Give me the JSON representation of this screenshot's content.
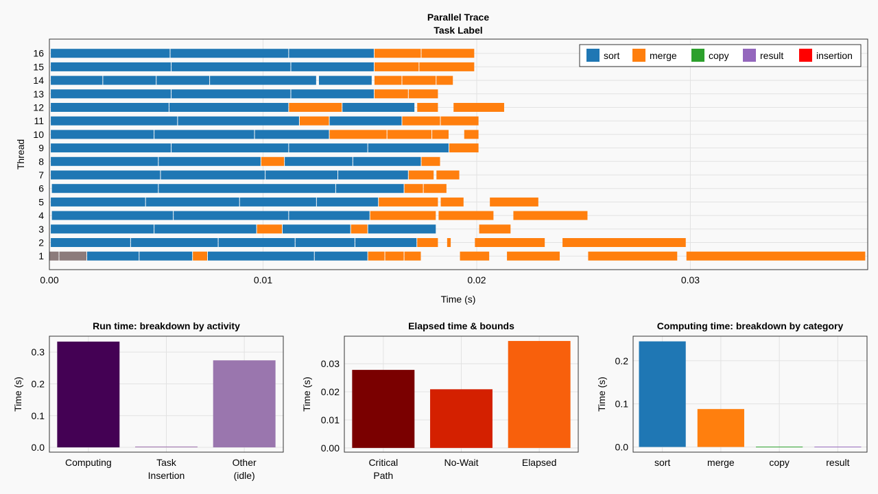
{
  "chart_data": [
    {
      "type": "bar",
      "orientation": "horizontal-gantt",
      "title": "Parallel Trace",
      "subtitle": "Task Label",
      "xlabel": "Time (s)",
      "ylabel": "Thread",
      "xlim": [
        0.0,
        0.0383
      ],
      "xticks": [
        "0.00",
        "0.01",
        "0.02",
        "0.03"
      ],
      "xtick_values": [
        0.0,
        0.01,
        0.02,
        0.03
      ],
      "legend_position": "top-right",
      "legend": [
        {
          "name": "sort",
          "color": "#1f77b4"
        },
        {
          "name": "merge",
          "color": "#ff7f0e"
        },
        {
          "name": "copy",
          "color": "#2ca02c"
        },
        {
          "name": "result",
          "color": "#9467bd"
        },
        {
          "name": "insertion",
          "color": "#ff0000"
        }
      ],
      "threads": [
        {
          "thread": "16",
          "tasks": [
            {
              "s": 5e-05,
              "e": 0.00565,
              "c": "sort"
            },
            {
              "s": 0.00565,
              "e": 0.0112,
              "c": "sort"
            },
            {
              "s": 0.0112,
              "e": 0.0152,
              "c": "sort"
            },
            {
              "s": 0.0152,
              "e": 0.0174,
              "c": "merge"
            },
            {
              "s": 0.0174,
              "e": 0.0199,
              "c": "merge"
            }
          ]
        },
        {
          "thread": "15",
          "tasks": [
            {
              "s": 5e-05,
              "e": 0.0057,
              "c": "sort"
            },
            {
              "s": 0.0057,
              "e": 0.0113,
              "c": "sort"
            },
            {
              "s": 0.0113,
              "e": 0.0152,
              "c": "sort"
            },
            {
              "s": 0.0152,
              "e": 0.0173,
              "c": "merge"
            },
            {
              "s": 0.0173,
              "e": 0.0199,
              "c": "merge"
            }
          ]
        },
        {
          "thread": "14",
          "tasks": [
            {
              "s": 5e-05,
              "e": 0.0025,
              "c": "sort"
            },
            {
              "s": 0.0025,
              "e": 0.005,
              "c": "sort"
            },
            {
              "s": 0.005,
              "e": 0.0075,
              "c": "sort"
            },
            {
              "s": 0.0075,
              "e": 0.0125,
              "c": "sort"
            },
            {
              "s": 0.0126,
              "e": 0.0151,
              "c": "sort"
            },
            {
              "s": 0.0152,
              "e": 0.0165,
              "c": "merge"
            },
            {
              "s": 0.0165,
              "e": 0.0181,
              "c": "merge"
            },
            {
              "s": 0.0181,
              "e": 0.0189,
              "c": "merge"
            }
          ]
        },
        {
          "thread": "13",
          "tasks": [
            {
              "s": 5e-05,
              "e": 0.0057,
              "c": "sort"
            },
            {
              "s": 0.0057,
              "e": 0.0113,
              "c": "sort"
            },
            {
              "s": 0.0113,
              "e": 0.0152,
              "c": "sort"
            },
            {
              "s": 0.0152,
              "e": 0.0168,
              "c": "merge"
            },
            {
              "s": 0.0168,
              "e": 0.0182,
              "c": "merge"
            }
          ]
        },
        {
          "thread": "12",
          "tasks": [
            {
              "s": 5e-05,
              "e": 0.0056,
              "c": "sort"
            },
            {
              "s": 0.0056,
              "e": 0.0112,
              "c": "sort"
            },
            {
              "s": 0.0112,
              "e": 0.0137,
              "c": "merge"
            },
            {
              "s": 0.0137,
              "e": 0.0171,
              "c": "sort"
            },
            {
              "s": 0.0172,
              "e": 0.0182,
              "c": "merge"
            },
            {
              "s": 0.0189,
              "e": 0.0213,
              "c": "merge"
            }
          ]
        },
        {
          "thread": "11",
          "tasks": [
            {
              "s": 5e-05,
              "e": 0.006,
              "c": "sort"
            },
            {
              "s": 0.006,
              "e": 0.0117,
              "c": "sort"
            },
            {
              "s": 0.0117,
              "e": 0.0131,
              "c": "merge"
            },
            {
              "s": 0.0131,
              "e": 0.0165,
              "c": "sort"
            },
            {
              "s": 0.0165,
              "e": 0.0183,
              "c": "merge"
            },
            {
              "s": 0.0183,
              "e": 0.0201,
              "c": "merge"
            }
          ]
        },
        {
          "thread": "10",
          "tasks": [
            {
              "s": 5e-05,
              "e": 0.0049,
              "c": "sort"
            },
            {
              "s": 0.0049,
              "e": 0.0096,
              "c": "sort"
            },
            {
              "s": 0.0096,
              "e": 0.0131,
              "c": "sort"
            },
            {
              "s": 0.0131,
              "e": 0.0158,
              "c": "merge"
            },
            {
              "s": 0.0158,
              "e": 0.0179,
              "c": "merge"
            },
            {
              "s": 0.0179,
              "e": 0.0187,
              "c": "merge"
            },
            {
              "s": 0.0194,
              "e": 0.0201,
              "c": "merge"
            }
          ]
        },
        {
          "thread": "9",
          "tasks": [
            {
              "s": 5e-05,
              "e": 0.0057,
              "c": "sort"
            },
            {
              "s": 0.0057,
              "e": 0.0112,
              "c": "sort"
            },
            {
              "s": 0.0112,
              "e": 0.0149,
              "c": "sort"
            },
            {
              "s": 0.0149,
              "e": 0.0187,
              "c": "sort"
            },
            {
              "s": 0.0187,
              "e": 0.0201,
              "c": "merge"
            }
          ]
        },
        {
          "thread": "8",
          "tasks": [
            {
              "s": 5e-05,
              "e": 0.0051,
              "c": "sort"
            },
            {
              "s": 0.0051,
              "e": 0.0099,
              "c": "sort"
            },
            {
              "s": 0.0099,
              "e": 0.011,
              "c": "merge"
            },
            {
              "s": 0.011,
              "e": 0.0142,
              "c": "sort"
            },
            {
              "s": 0.0142,
              "e": 0.0174,
              "c": "sort"
            },
            {
              "s": 0.0174,
              "e": 0.0183,
              "c": "merge"
            }
          ]
        },
        {
          "thread": "7",
          "tasks": [
            {
              "s": 5e-05,
              "e": 0.0052,
              "c": "sort"
            },
            {
              "s": 0.0052,
              "e": 0.0101,
              "c": "sort"
            },
            {
              "s": 0.0101,
              "e": 0.0135,
              "c": "sort"
            },
            {
              "s": 0.0135,
              "e": 0.0168,
              "c": "sort"
            },
            {
              "s": 0.0168,
              "e": 0.018,
              "c": "merge"
            },
            {
              "s": 0.0181,
              "e": 0.0192,
              "c": "merge"
            }
          ]
        },
        {
          "thread": "6",
          "tasks": [
            {
              "s": 0.0001,
              "e": 0.0051,
              "c": "sort"
            },
            {
              "s": 0.0051,
              "e": 0.0134,
              "c": "sort"
            },
            {
              "s": 0.0134,
              "e": 0.0166,
              "c": "sort"
            },
            {
              "s": 0.0166,
              "e": 0.0175,
              "c": "merge"
            },
            {
              "s": 0.0175,
              "e": 0.0186,
              "c": "merge"
            }
          ]
        },
        {
          "thread": "5",
          "tasks": [
            {
              "s": 5e-05,
              "e": 0.0045,
              "c": "sort"
            },
            {
              "s": 0.0045,
              "e": 0.0089,
              "c": "sort"
            },
            {
              "s": 0.0089,
              "e": 0.0125,
              "c": "sort"
            },
            {
              "s": 0.0125,
              "e": 0.0154,
              "c": "sort"
            },
            {
              "s": 0.0154,
              "e": 0.0182,
              "c": "merge"
            },
            {
              "s": 0.0183,
              "e": 0.0194,
              "c": "merge"
            },
            {
              "s": 0.0206,
              "e": 0.0229,
              "c": "merge"
            }
          ]
        },
        {
          "thread": "4",
          "tasks": [
            {
              "s": 0.0001,
              "e": 0.0058,
              "c": "sort"
            },
            {
              "s": 0.0058,
              "e": 0.0112,
              "c": "sort"
            },
            {
              "s": 0.0112,
              "e": 0.015,
              "c": "sort"
            },
            {
              "s": 0.015,
              "e": 0.0181,
              "c": "merge"
            },
            {
              "s": 0.0182,
              "e": 0.0208,
              "c": "merge"
            },
            {
              "s": 0.0217,
              "e": 0.0252,
              "c": "merge"
            }
          ]
        },
        {
          "thread": "3",
          "tasks": [
            {
              "s": 5e-05,
              "e": 0.0049,
              "c": "sort"
            },
            {
              "s": 0.0049,
              "e": 0.0097,
              "c": "sort"
            },
            {
              "s": 0.0097,
              "e": 0.0109,
              "c": "merge"
            },
            {
              "s": 0.0109,
              "e": 0.0141,
              "c": "sort"
            },
            {
              "s": 0.0141,
              "e": 0.0149,
              "c": "merge"
            },
            {
              "s": 0.0149,
              "e": 0.0181,
              "c": "sort"
            },
            {
              "s": 0.0201,
              "e": 0.0216,
              "c": "merge"
            }
          ]
        },
        {
          "thread": "2",
          "tasks": [
            {
              "s": 5e-05,
              "e": 0.0038,
              "c": "sort"
            },
            {
              "s": 0.0038,
              "e": 0.0079,
              "c": "sort"
            },
            {
              "s": 0.0079,
              "e": 0.0115,
              "c": "sort"
            },
            {
              "s": 0.0115,
              "e": 0.0143,
              "c": "sort"
            },
            {
              "s": 0.0143,
              "e": 0.0172,
              "c": "sort"
            },
            {
              "s": 0.0172,
              "e": 0.0182,
              "c": "merge"
            },
            {
              "s": 0.0186,
              "e": 0.0188,
              "c": "merge"
            },
            {
              "s": 0.0199,
              "e": 0.0232,
              "c": "merge"
            },
            {
              "s": 0.024,
              "e": 0.0298,
              "c": "merge"
            }
          ]
        },
        {
          "thread": "1",
          "tasks": [
            {
              "s": 0.0,
              "e": 0.00045,
              "c": "other"
            },
            {
              "s": 0.00045,
              "e": 0.00175,
              "c": "other"
            },
            {
              "s": 0.00175,
              "e": 0.0042,
              "c": "sort"
            },
            {
              "s": 0.0042,
              "e": 0.0067,
              "c": "sort"
            },
            {
              "s": 0.0067,
              "e": 0.0074,
              "c": "merge"
            },
            {
              "s": 0.0074,
              "e": 0.0124,
              "c": "sort"
            },
            {
              "s": 0.0124,
              "e": 0.0149,
              "c": "sort"
            },
            {
              "s": 0.0149,
              "e": 0.0157,
              "c": "merge"
            },
            {
              "s": 0.0157,
              "e": 0.0166,
              "c": "merge"
            },
            {
              "s": 0.0166,
              "e": 0.0174,
              "c": "merge"
            },
            {
              "s": 0.0192,
              "e": 0.0206,
              "c": "merge"
            },
            {
              "s": 0.0214,
              "e": 0.0239,
              "c": "merge"
            },
            {
              "s": 0.0252,
              "e": 0.0294,
              "c": "merge"
            },
            {
              "s": 0.0298,
              "e": 0.0382,
              "c": "merge"
            }
          ]
        }
      ],
      "colors": {
        "sort": "#1f77b4",
        "merge": "#ff7f0e",
        "copy": "#2ca02c",
        "result": "#9467bd",
        "insertion": "#ff0000",
        "other": "#8c7b7b"
      }
    },
    {
      "type": "bar",
      "title": "Run time: breakdown by activity",
      "ylabel": "Time (s)",
      "categories": [
        "Computing",
        "Task\nInsertion",
        "Other\n(idle)"
      ],
      "values": [
        0.333,
        0.0015,
        0.274
      ],
      "colors": [
        "#440154",
        "#9a6cab",
        "#9a76ae"
      ],
      "ylim": [
        -0.015,
        0.35
      ],
      "yticks": [
        "0.0",
        "0.1",
        "0.2",
        "0.3"
      ],
      "ytick_values": [
        0.0,
        0.1,
        0.2,
        0.3
      ]
    },
    {
      "type": "bar",
      "title": "Elapsed time & bounds",
      "ylabel": "Time (s)",
      "categories": [
        "Critical\nPath",
        "No-Wait",
        "Elapsed"
      ],
      "values": [
        0.0278,
        0.0209,
        0.0381
      ],
      "colors": [
        "#7a0000",
        "#d42000",
        "#f8600c"
      ],
      "ylim": [
        -0.0015,
        0.0398
      ],
      "yticks": [
        "0.00",
        "0.01",
        "0.02",
        "0.03"
      ],
      "ytick_values": [
        0.0,
        0.01,
        0.02,
        0.03
      ]
    },
    {
      "type": "bar",
      "title": "Computing time: breakdown by category",
      "ylabel": "Time (s)",
      "categories": [
        "sort",
        "merge",
        "copy",
        "result"
      ],
      "values": [
        0.245,
        0.088,
        0.0,
        0.0
      ],
      "colors": [
        "#1f77b4",
        "#ff7f0e",
        "#2ca02c",
        "#9467bd"
      ],
      "ylim": [
        -0.012,
        0.257
      ],
      "yticks": [
        "0.0",
        "0.1",
        "0.2"
      ],
      "ytick_values": [
        0.0,
        0.1,
        0.2
      ]
    }
  ]
}
